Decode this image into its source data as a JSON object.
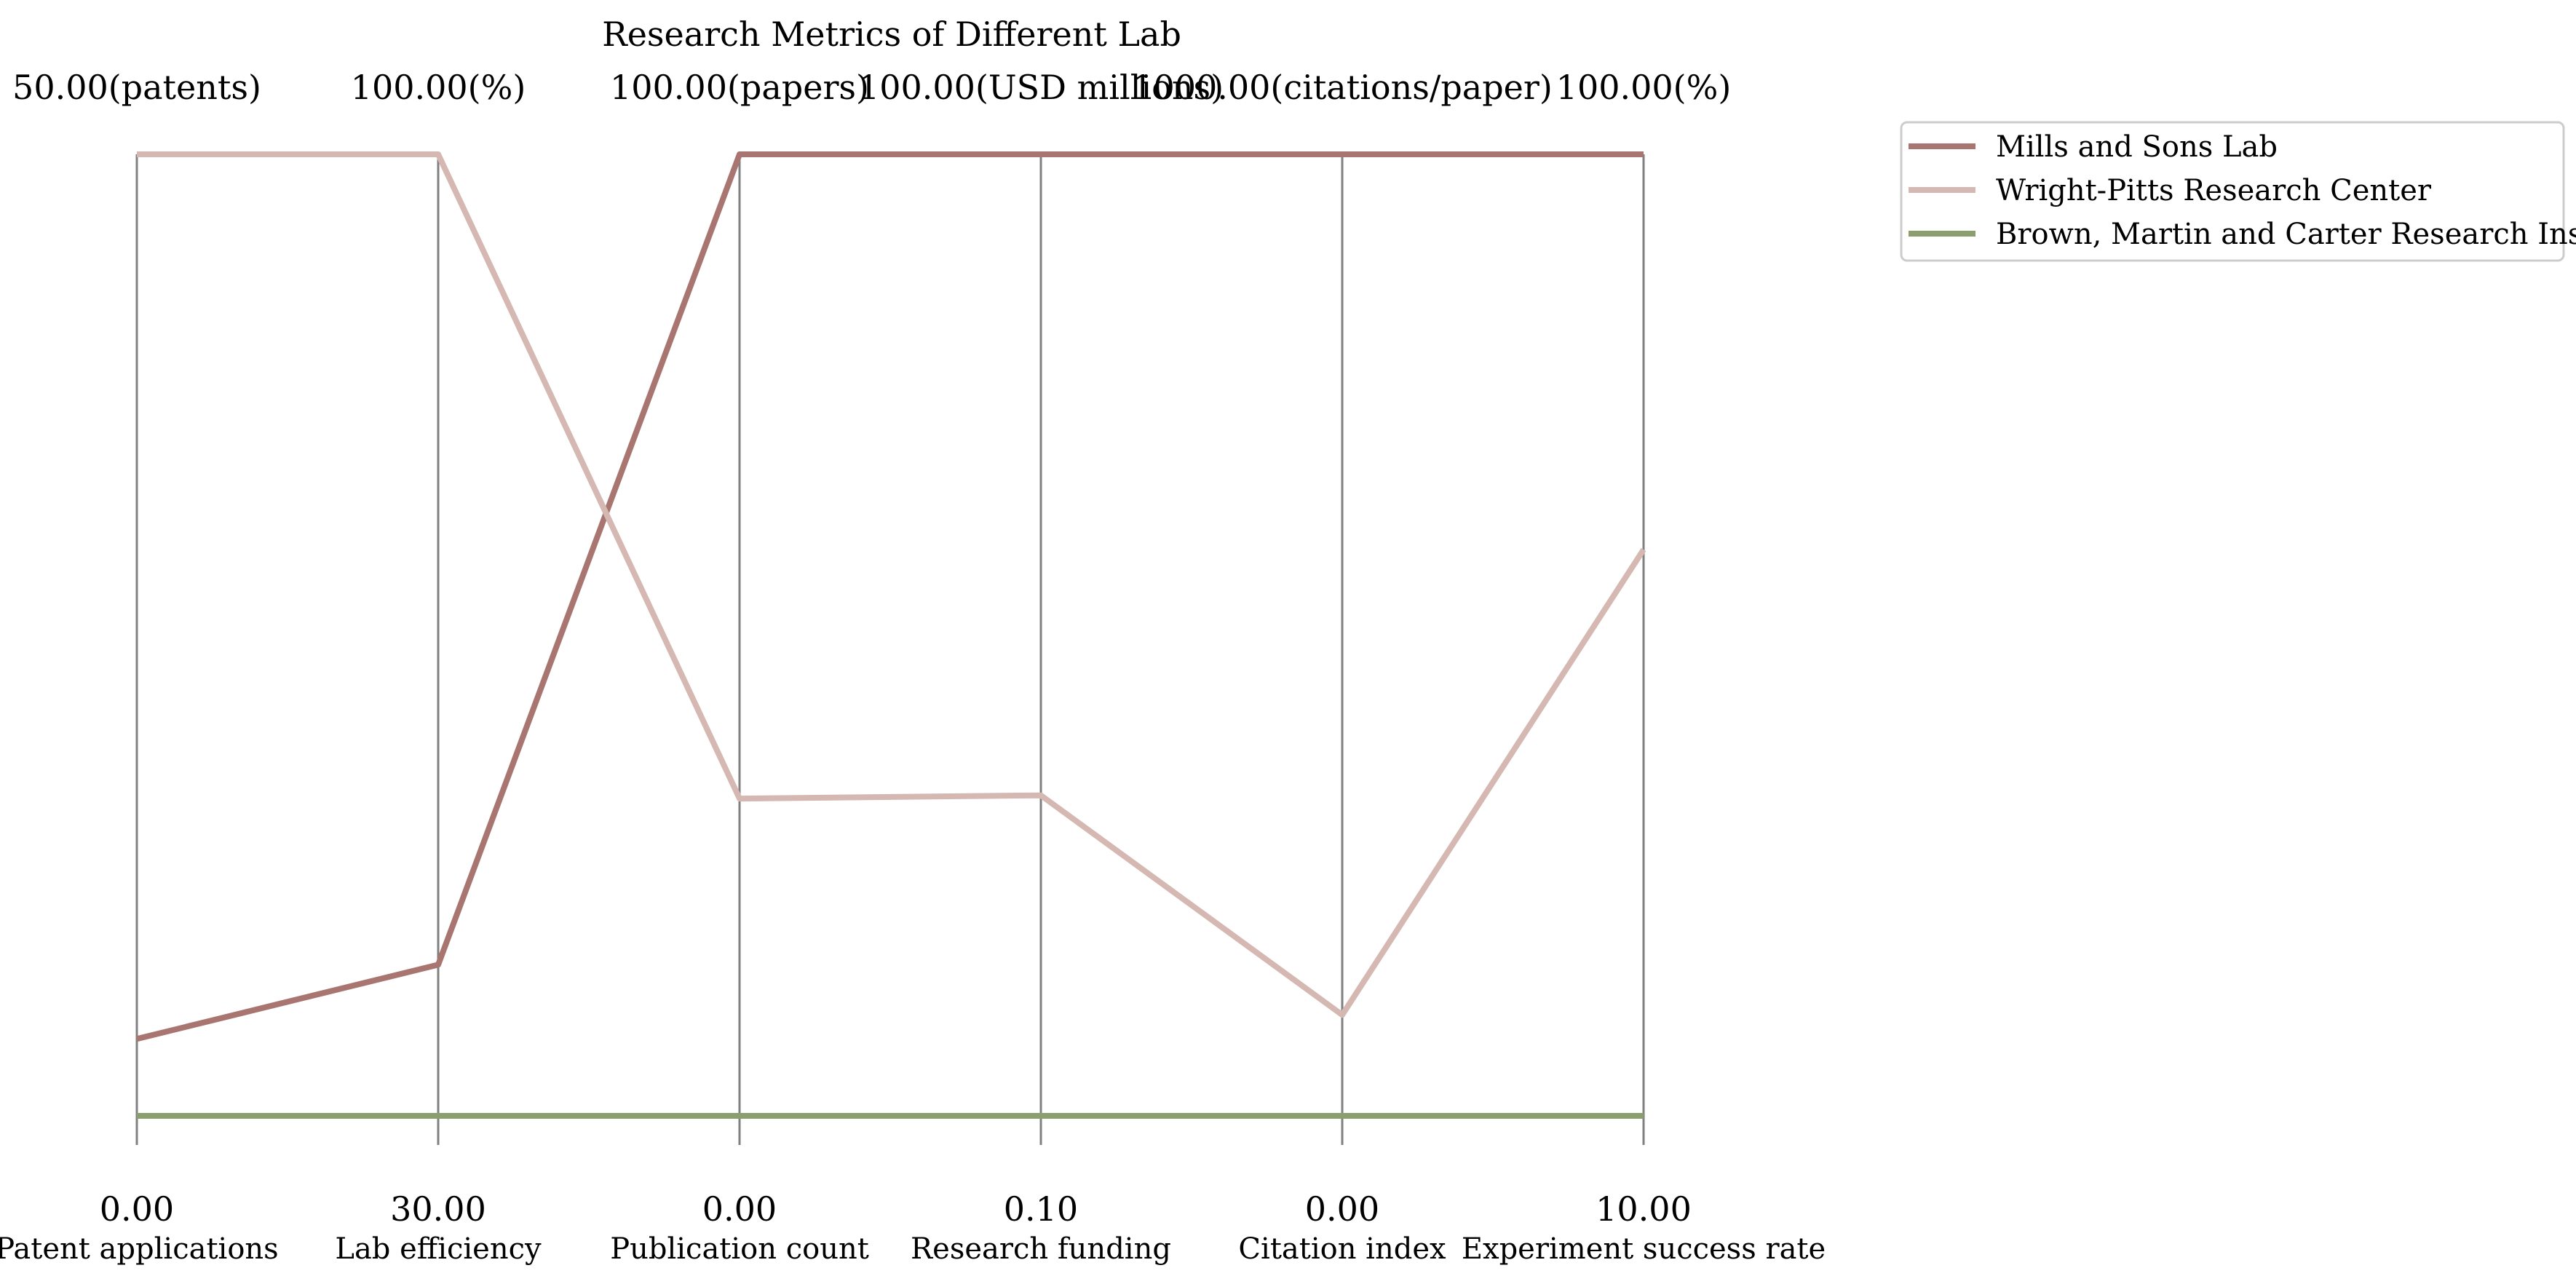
{
  "chart_data": {
    "type": "parallel-coordinates",
    "title": "Research Metrics of Different Lab",
    "axes": [
      {
        "name": "Patent applications",
        "min_label": "0.00",
        "max_label": "50.00(patents)",
        "min": 0,
        "max": 50,
        "unit": "patents"
      },
      {
        "name": "Lab efficiency",
        "min_label": "30.00",
        "max_label": "100.00(%)",
        "min": 30,
        "max": 100,
        "unit": "%"
      },
      {
        "name": "Publication count",
        "min_label": "0.00",
        "max_label": "100.00(papers)",
        "min": 0,
        "max": 100,
        "unit": "papers"
      },
      {
        "name": "Research funding",
        "min_label": "0.10",
        "max_label": "100.00(USD millions)",
        "min": 0.1,
        "max": 100,
        "unit": "USD millions"
      },
      {
        "name": "Citation index",
        "min_label": "0.00",
        "max_label": "1000.00(citations/paper)",
        "min": 0,
        "max": 1000,
        "unit": "citations/paper"
      },
      {
        "name": "Experiment success rate",
        "min_label": "10.00",
        "max_label": "100.00(%)",
        "min": 10,
        "max": 100,
        "unit": "%"
      }
    ],
    "series": [
      {
        "name": "Mills and Sons  Lab",
        "color": "#a87570",
        "values": [
          4,
          41,
          100,
          100,
          1000,
          100
        ]
      },
      {
        "name": "Wright-Pitts  Research Center",
        "color": "#d6b8b2",
        "values": [
          50,
          100,
          33,
          33.4,
          105,
          63
        ]
      },
      {
        "name": "Brown, Martin and Carter  Research Institute",
        "color": "#8a9e6e",
        "values": [
          0,
          30,
          0,
          0.1,
          0,
          10
        ]
      }
    ],
    "legend_position": "upper right, outside plot",
    "grid": false
  }
}
